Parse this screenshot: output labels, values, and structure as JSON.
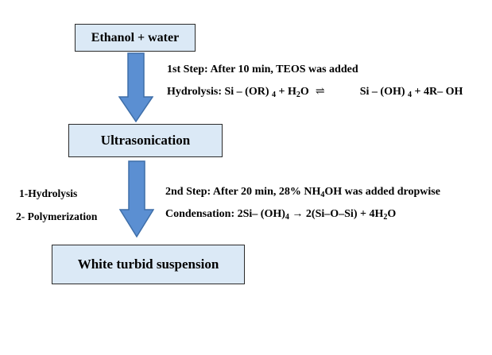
{
  "box1": {
    "label": "Ethanol  + water"
  },
  "box2": {
    "label": "Ultrasonication"
  },
  "box3": {
    "label": "White turbid  suspension"
  },
  "step1": {
    "label": "1st Step: After 10 min,  TEOS was added",
    "eq_prefix": "Hydrolysis:  Si – (OR)",
    "sub_4a": "4",
    "plus_h2o": " + H",
    "sub_2a": "2",
    "o": "O",
    "equilibrium_symbol": "⇌",
    "product": "Si – (OH)",
    "sub_4b": "4",
    "tail": " + 4R– OH"
  },
  "left_notes": {
    "n1": "1-Hydrolysis",
    "n2": "2- Polymerization"
  },
  "step2": {
    "prefix": "2nd Step: After 20 min,  28% NH",
    "sub_4": "4",
    "suffix": "OH was added dropwise",
    "eq_prefix": "Condensation:  2Si– (OH)",
    "eq_sub_4": "4",
    "arrow": " → ",
    "eq_mid": " 2(Si–O–Si) + 4H",
    "eq_sub_2": "2",
    "eq_end": "O"
  },
  "colors": {
    "box_fill": "#dbe9f6",
    "arrow_fill": "#5b8fd2",
    "arrow_stroke": "#3e6ea8"
  }
}
